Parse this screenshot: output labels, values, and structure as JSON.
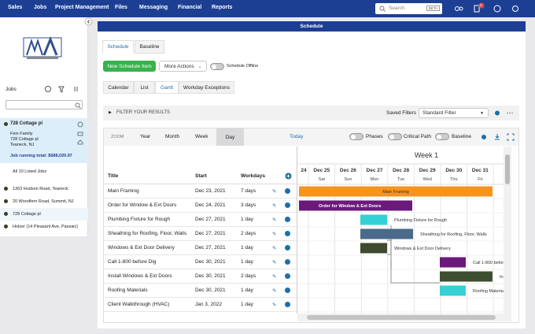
{
  "nav": {
    "items": [
      "Sales",
      "Jobs",
      "Project Management",
      "Files",
      "Messaging",
      "Financial",
      "Reports"
    ],
    "search": "Search",
    "beta": "BETA",
    "notification_count": "2"
  },
  "sidebar": {
    "jobs_label": "Jobs",
    "selected_job": {
      "title": "728 Cottage pl",
      "lines": [
        "Fein Family",
        "728 Cottage pl",
        "Teaneck, NJ"
      ],
      "total": "Job running total: $688,020.97"
    },
    "all_jobs": "All 10 Listed Jobs",
    "jobs": [
      "1363 Hudson Road, Teaneck",
      "20 Woodfern Road, Summit, NJ",
      "728 Cottage pl",
      "Holzer (14 Pleasant Ave, Passaic)"
    ]
  },
  "main": {
    "header": "Schedule",
    "tabs": [
      "Schedule",
      "Baseline"
    ],
    "new_item": "New Schedule Item",
    "more_actions": "More Actions",
    "offline": "Schedule Offline",
    "views": [
      "Calendar",
      "List",
      "Gantt",
      "Workday Exceptions"
    ],
    "filter": "FILTER YOUR RESULTS",
    "saved_filters": "Saved Filters",
    "filter_select": "Standard Filter"
  },
  "gantt": {
    "zoom": "ZOOM",
    "zoom_levels": [
      "Year",
      "Month",
      "Week",
      "Day"
    ],
    "today": "Today",
    "toggles": [
      "Phases",
      "Critical Path",
      "Baseline"
    ],
    "columns": [
      "Title",
      "Start",
      "Workdays"
    ],
    "week": "Week 1",
    "dates": [
      {
        "date": "24"
      },
      {
        "date": "Dec 25",
        "day": "Sat"
      },
      {
        "date": "Dec 26",
        "day": "Sun"
      },
      {
        "date": "Dec 27",
        "day": "Mon"
      },
      {
        "date": "Dec 28",
        "day": "Tue"
      },
      {
        "date": "Dec 29",
        "day": "Wed"
      },
      {
        "date": "Dec 30",
        "day": "Thu"
      },
      {
        "date": "Dec 31",
        "day": "Fri"
      }
    ],
    "rows": [
      [
        "Main Framing",
        "Dec 23, 2021",
        "7 days"
      ],
      [
        "Order for Window & Ext Doors",
        "Dec 24, 2021",
        "3 days"
      ],
      [
        "Plumbing Fixture for Rough",
        "Dec 27, 2021",
        "1 day"
      ],
      [
        "Sheathing for Roofing, Floor, Walls",
        "Dec 27, 2021",
        "2 days"
      ],
      [
        "Windows & Ext Door Delivery",
        "Dec 27, 2021",
        "1 day"
      ],
      [
        "Call 1-800 before Dig",
        "Dec 30, 2021",
        "1 day"
      ],
      [
        "Install Windows & Ext Doors",
        "Dec 30, 2021",
        "2 days"
      ],
      [
        "Roofing Materials",
        "Dec 30, 2021",
        "1 day"
      ],
      [
        "Client Walkthrough (HVAC)",
        "Jan 3, 2022",
        "1 day"
      ]
    ]
  }
}
